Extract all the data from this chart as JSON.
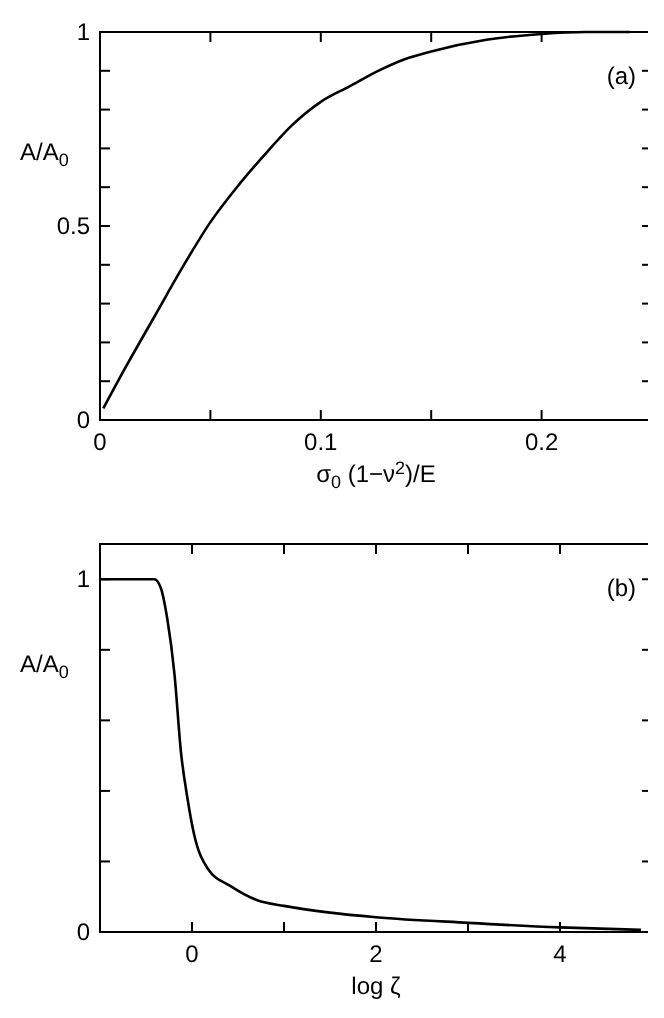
{
  "chart_data": [
    {
      "type": "line",
      "xlabel": "σ$_{0}$ (1−ν$^{2}$)/E",
      "ylabel": "A/A$_{0}$",
      "annotations": [
        "(a)"
      ],
      "xlim": [
        0,
        0.25
      ],
      "ylim": [
        0,
        1
      ],
      "xticks": [
        0,
        {
          "value": 0.05,
          "label": null
        },
        0.1,
        {
          "value": 0.15,
          "label": null
        },
        0.2
      ],
      "yticks": [
        0,
        {
          "value": 0.1,
          "label": null
        },
        {
          "value": 0.2,
          "label": null
        },
        {
          "value": 0.3,
          "label": null
        },
        {
          "value": 0.4,
          "label": null
        },
        0.5,
        {
          "value": 0.6,
          "label": null
        },
        {
          "value": 0.7,
          "label": null
        },
        {
          "value": 0.8,
          "label": null
        },
        {
          "value": 0.9,
          "label": null
        },
        1
      ],
      "series": [
        {
          "color": "#000000",
          "x": [
            0.0015,
            0.012,
            0.025,
            0.037,
            0.05,
            0.062,
            0.074,
            0.087,
            0.1,
            0.113,
            0.126,
            0.138,
            0.15,
            0.175,
            0.2,
            0.22,
            0.24
          ],
          "values": [
            0.03,
            0.14,
            0.27,
            0.39,
            0.51,
            0.6,
            0.68,
            0.76,
            0.82,
            0.86,
            0.9,
            0.93,
            0.95,
            0.98,
            0.995,
            1,
            1
          ]
        }
      ]
    },
    {
      "type": "line",
      "xlabel": "log ζ",
      "ylabel": "A/A$_{0}$",
      "annotations": [
        "(b)"
      ],
      "xlim": [
        -1,
        5
      ],
      "ylim": [
        0,
        1.1
      ],
      "xticks": [
        {
          "value": -1,
          "label": null
        },
        0,
        {
          "value": 1,
          "label": null
        },
        2,
        {
          "value": 3,
          "label": null
        },
        4
      ],
      "yticks": [
        0,
        {
          "value": 0.2,
          "label": null
        },
        {
          "value": 0.4,
          "label": null
        },
        {
          "value": 0.6,
          "label": null
        },
        {
          "value": 0.8,
          "label": null
        },
        1
      ],
      "series": [
        {
          "color": "#000000",
          "x": [
            -1,
            -0.41,
            -0.34,
            -0.27,
            -0.19,
            -0.12,
            -0.05,
            0.02,
            0.17,
            0.42,
            0.71,
            1,
            1.5,
            2,
            3,
            4,
            4.88
          ],
          "values": [
            1,
            1,
            0.976,
            0.89,
            0.73,
            0.51,
            0.38,
            0.28,
            0.18,
            0.13,
            0.09,
            0.074,
            0.055,
            0.042,
            0.026,
            0.013,
            0.006
          ]
        }
      ]
    }
  ]
}
